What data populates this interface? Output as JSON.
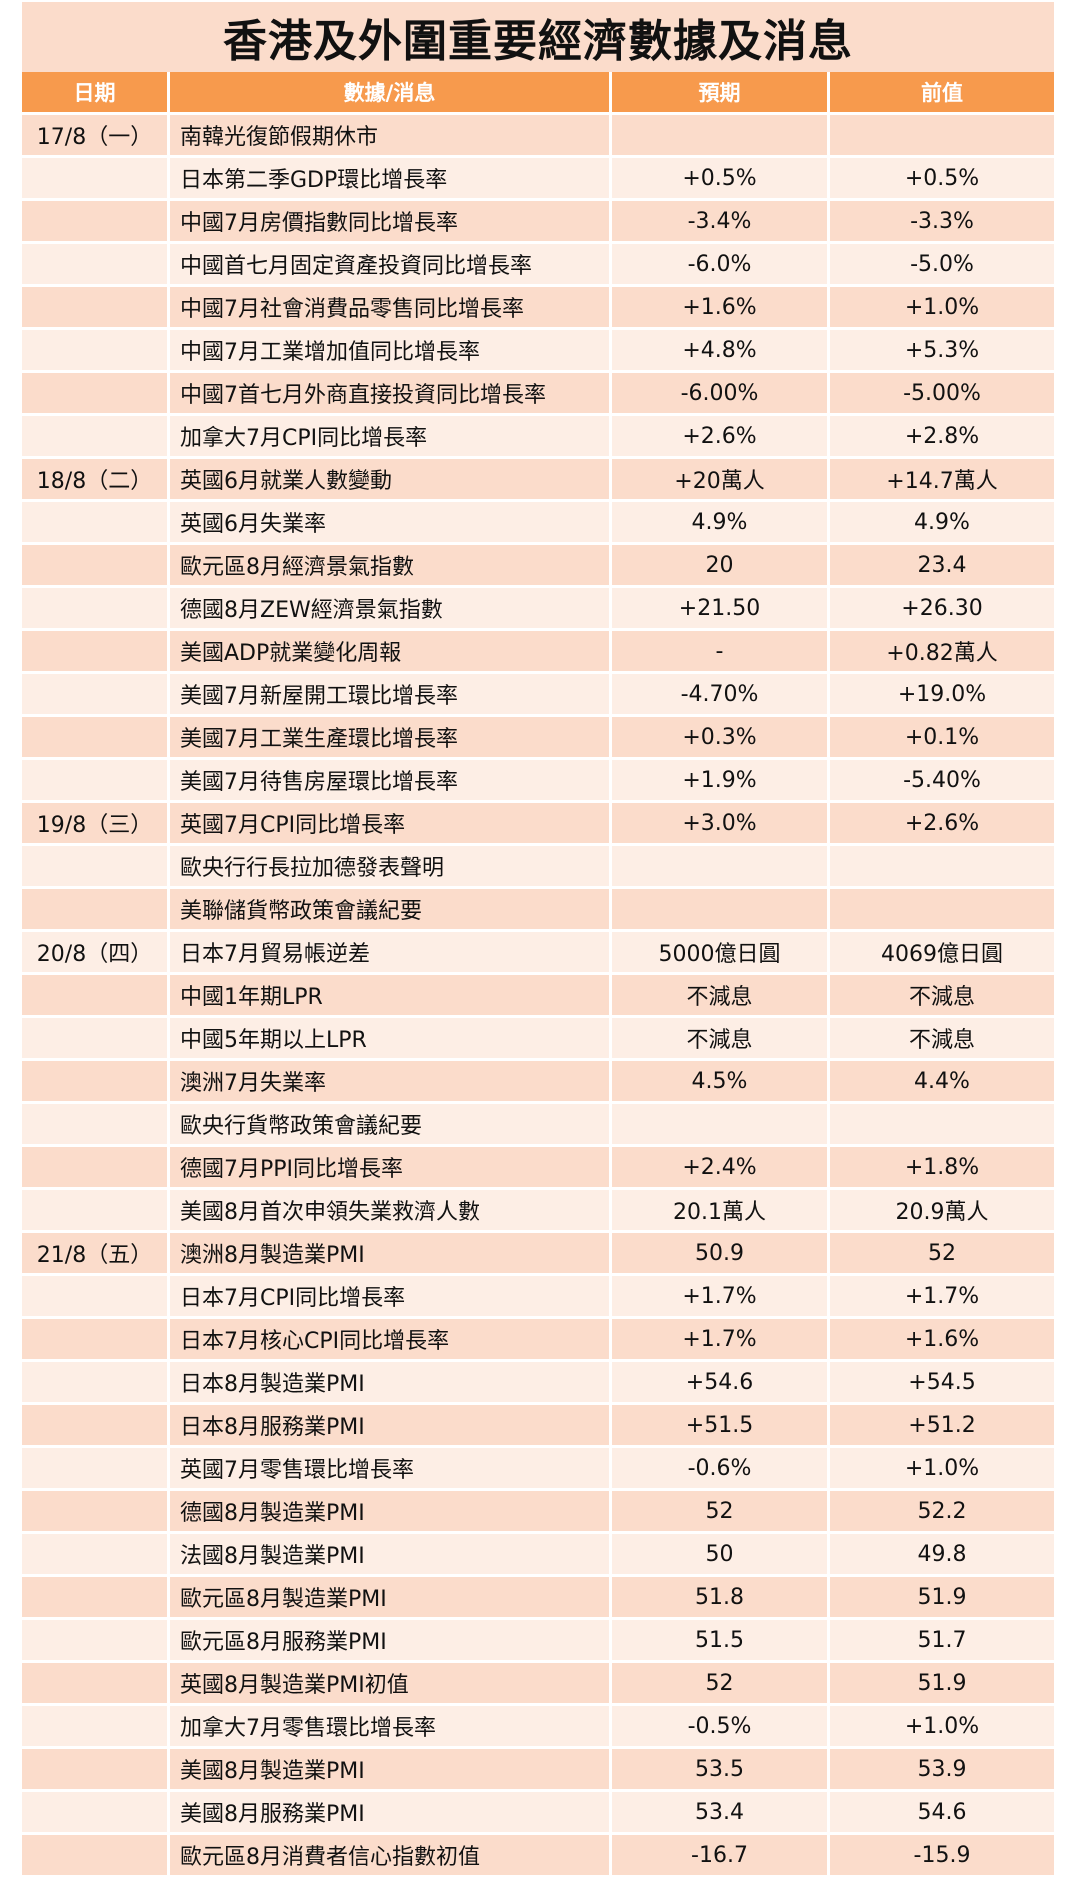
{
  "title": "香港及外圍重要經濟數據及消息",
  "headers": [
    "日期",
    "數據/消息",
    "預期",
    "前值"
  ],
  "rows": [
    {
      "date": "17/8（一）",
      "item": "南韓光復節假期休市",
      "forecast": "",
      "previous": ""
    },
    {
      "date": "",
      "item": "日本第二季GDP環比增長率",
      "forecast": "+0.5%",
      "previous": "+0.5%"
    },
    {
      "date": "",
      "item": "中國7月房價指數同比增長率",
      "forecast": "-3.4%",
      "previous": "-3.3%"
    },
    {
      "date": "",
      "item": "中國首七月固定資產投資同比增長率",
      "forecast": "-6.0%",
      "previous": "-5.0%"
    },
    {
      "date": "",
      "item": "中國7月社會消費品零售同比增長率",
      "forecast": "+1.6%",
      "previous": "+1.0%"
    },
    {
      "date": "",
      "item": "中國7月工業增加值同比增長率",
      "forecast": "+4.8%",
      "previous": "+5.3%"
    },
    {
      "date": "",
      "item": "中國7首七月外商直接投資同比增長率",
      "forecast": "-6.00%",
      "previous": "-5.00%"
    },
    {
      "date": "",
      "item": "加拿大7月CPI同比增長率",
      "forecast": "+2.6%",
      "previous": "+2.8%"
    },
    {
      "date": "18/8（二）",
      "item": "英國6月就業人數變動",
      "forecast": "+20萬人",
      "previous": "+14.7萬人"
    },
    {
      "date": "",
      "item": "英國6月失業率",
      "forecast": "4.9%",
      "previous": "4.9%"
    },
    {
      "date": "",
      "item": "歐元區8月經濟景氣指數",
      "forecast": "20",
      "previous": "23.4"
    },
    {
      "date": "",
      "item": "德國8月ZEW經濟景氣指數",
      "forecast": "+21.50",
      "previous": "+26.30"
    },
    {
      "date": "",
      "item": "美國ADP就業變化周報",
      "forecast": "-",
      "previous": "+0.82萬人"
    },
    {
      "date": "",
      "item": "美國7月新屋開工環比增長率",
      "forecast": "-4.70%",
      "previous": "+19.0%"
    },
    {
      "date": "",
      "item": "美國7月工業生產環比增長率",
      "forecast": "+0.3%",
      "previous": "+0.1%"
    },
    {
      "date": "",
      "item": "美國7月待售房屋環比增長率",
      "forecast": "+1.9%",
      "previous": "-5.40%"
    },
    {
      "date": "19/8（三）",
      "item": "英國7月CPI同比增長率",
      "forecast": "+3.0%",
      "previous": "+2.6%"
    },
    {
      "date": "",
      "item": "歐央行行長拉加德發表聲明",
      "forecast": "",
      "previous": ""
    },
    {
      "date": "",
      "item": "美聯儲貨幣政策會議紀要",
      "forecast": "",
      "previous": ""
    },
    {
      "date": "20/8（四）",
      "item": "日本7月貿易帳逆差",
      "forecast": "5000億日圓",
      "previous": "4069億日圓"
    },
    {
      "date": "",
      "item": "中國1年期LPR",
      "forecast": "不減息",
      "previous": "不減息"
    },
    {
      "date": "",
      "item": "中國5年期以上LPR",
      "forecast": "不減息",
      "previous": "不減息"
    },
    {
      "date": "",
      "item": "澳洲7月失業率",
      "forecast": "4.5%",
      "previous": "4.4%"
    },
    {
      "date": "",
      "item": "歐央行貨幣政策會議紀要",
      "forecast": "",
      "previous": ""
    },
    {
      "date": "",
      "item": "德國7月PPI同比增長率",
      "forecast": "+2.4%",
      "previous": "+1.8%"
    },
    {
      "date": "",
      "item": "美國8月首次申領失業救濟人數",
      "forecast": "20.1萬人",
      "previous": "20.9萬人"
    },
    {
      "date": "21/8（五）",
      "item": "澳洲8月製造業PMI",
      "forecast": "50.9",
      "previous": "52"
    },
    {
      "date": "",
      "item": "日本7月CPI同比增長率",
      "forecast": "+1.7%",
      "previous": "+1.7%"
    },
    {
      "date": "",
      "item": "日本7月核心CPI同比增長率",
      "forecast": "+1.7%",
      "previous": "+1.6%"
    },
    {
      "date": "",
      "item": "日本8月製造業PMI",
      "forecast": "+54.6",
      "previous": "+54.5"
    },
    {
      "date": "",
      "item": "日本8月服務業PMI",
      "forecast": "+51.5",
      "previous": "+51.2"
    },
    {
      "date": "",
      "item": "英國7月零售環比增長率",
      "forecast": "-0.6%",
      "previous": "+1.0%"
    },
    {
      "date": "",
      "item": "德國8月製造業PMI",
      "forecast": "52",
      "previous": "52.2"
    },
    {
      "date": "",
      "item": "法國8月製造業PMI",
      "forecast": "50",
      "previous": "49.8"
    },
    {
      "date": "",
      "item": "歐元區8月製造業PMI",
      "forecast": "51.8",
      "previous": "51.9"
    },
    {
      "date": "",
      "item": "歐元區8月服務業PMI",
      "forecast": "51.5",
      "previous": "51.7"
    },
    {
      "date": "",
      "item": "英國8月製造業PMI初值",
      "forecast": "52",
      "previous": "51.9"
    },
    {
      "date": "",
      "item": "加拿大7月零售環比增長率",
      "forecast": "-0.5%",
      "previous": "+1.0%"
    },
    {
      "date": "",
      "item": "美國8月製造業PMI",
      "forecast": "53.5",
      "previous": "53.9"
    },
    {
      "date": "",
      "item": "美國8月服務業PMI",
      "forecast": "53.4",
      "previous": "54.6"
    },
    {
      "date": "",
      "item": "歐元區8月消費者信心指數初值",
      "forecast": "-16.7",
      "previous": "-15.9"
    }
  ]
}
